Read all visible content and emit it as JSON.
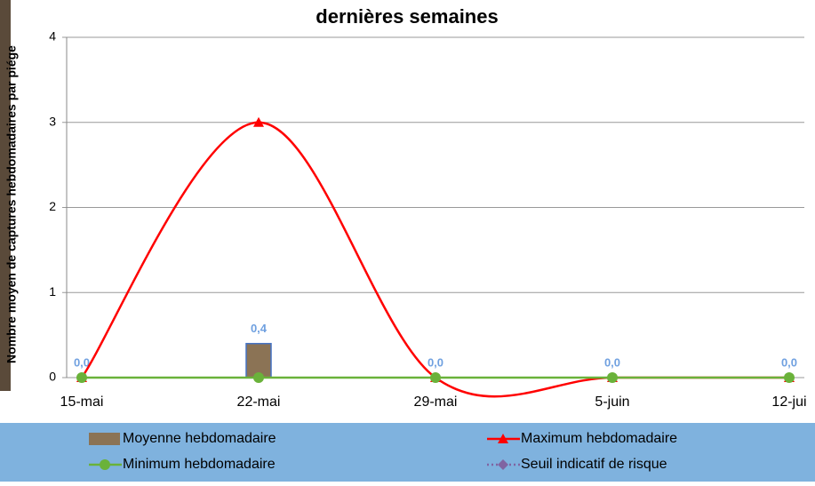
{
  "chart_data": {
    "type": "bar",
    "title": "dernières semaines",
    "y_label": "Nombre moyen de captures hebdomadaires par piége",
    "categories": [
      "15-mai",
      "22-mai",
      "29-mai",
      "5-juin",
      "12-jui"
    ],
    "ylim": [
      0,
      4
    ],
    "yticks": [
      0,
      1,
      2,
      3,
      4
    ],
    "grid": true,
    "series": [
      {
        "name": "Moyenne hebdomadaire",
        "type": "bar",
        "color": "#8b7355",
        "values": [
          0.0,
          0.4,
          0.0,
          0.0,
          0.0
        ],
        "value_labels": [
          "0,0",
          "0,4",
          "0,0",
          "0,0",
          "0,0"
        ]
      },
      {
        "name": "Maximum hebdomadaire",
        "type": "line",
        "marker": "triangle",
        "smooth": true,
        "color": "#ff0000",
        "values": [
          0,
          3,
          0,
          0,
          0
        ]
      },
      {
        "name": "Minimum hebdomadaire",
        "type": "line",
        "marker": "circle",
        "color": "#6ab23a",
        "values": [
          0,
          0,
          0,
          0,
          0
        ]
      },
      {
        "name": "Seuil indicatif de risque",
        "type": "line",
        "marker": "diamond",
        "dashed": true,
        "color": "#8064a2",
        "values": [
          null,
          null,
          null,
          null,
          null
        ]
      }
    ]
  }
}
